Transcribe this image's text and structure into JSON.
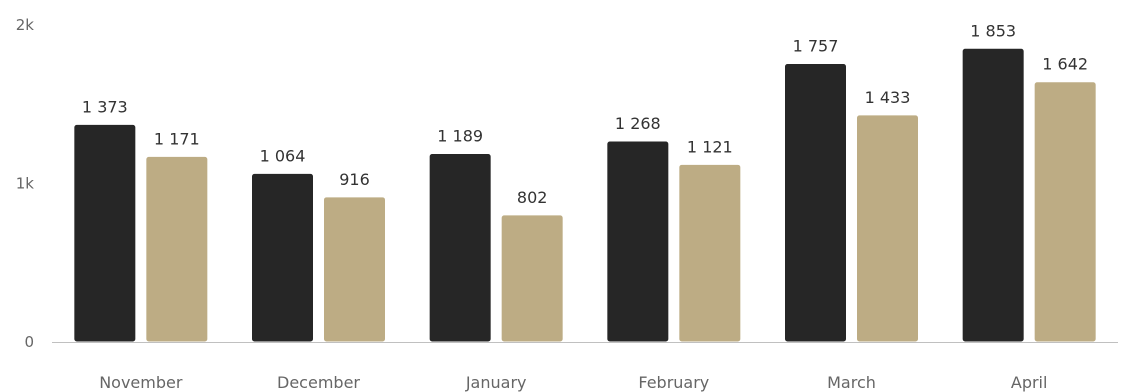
{
  "chart_data": {
    "type": "bar",
    "categories": [
      "November",
      "December",
      "January",
      "February",
      "March",
      "April"
    ],
    "series": [
      {
        "values": [
          1373,
          1064,
          1189,
          1268,
          1757,
          1853
        ],
        "labels": [
          "1 373",
          "1 064",
          "1 189",
          "1 268",
          "1 757",
          "1 853"
        ],
        "color": "#262626"
      },
      {
        "values": [
          1171,
          916,
          802,
          1121,
          1433,
          1642
        ],
        "labels": [
          "1 171",
          "916",
          "802",
          "1 121",
          "1 433",
          "1 642"
        ],
        "color": "#bdac84"
      }
    ],
    "y_ticks": [
      {
        "value": 0,
        "label": "0"
      },
      {
        "value": 1000,
        "label": "1k"
      },
      {
        "value": 2000,
        "label": "2k"
      }
    ],
    "ylim": [
      0,
      2000
    ],
    "grid": false,
    "axis_color": "#c0c0c0"
  }
}
